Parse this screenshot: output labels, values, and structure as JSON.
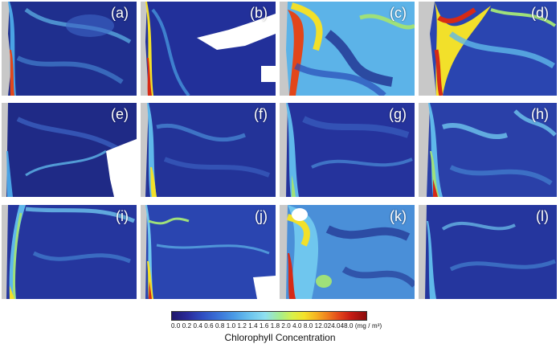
{
  "panels": [
    {
      "label": "(a)",
      "bloom": "low"
    },
    {
      "label": "(b)",
      "bloom": "coastal"
    },
    {
      "label": "(c)",
      "bloom": "high"
    },
    {
      "label": "(d)",
      "bloom": "high"
    },
    {
      "label": "(e)",
      "bloom": "low"
    },
    {
      "label": "(f)",
      "bloom": "low"
    },
    {
      "label": "(g)",
      "bloom": "low"
    },
    {
      "label": "(h)",
      "bloom": "medium"
    },
    {
      "label": "(i)",
      "bloom": "medium"
    },
    {
      "label": "(j)",
      "bloom": "low"
    },
    {
      "label": "(k)",
      "bloom": "high"
    },
    {
      "label": "(l)",
      "bloom": "low"
    }
  ],
  "colorbar": {
    "tick_labels": "0.0 0.2 0.4 0.6 0.8 1.0 1.2 1.4 1.6 1.8 2.0 4.0 8.0 12.024.048.0 (mg / m³)",
    "title": "Chlorophyll Concentration"
  },
  "colors": {
    "ocean_low": "#1c2a86",
    "ocean_mid": "#3a6fd0",
    "filament": "#6fc6ee",
    "bloom_green": "#9fe07a",
    "bloom_yellow": "#f2e02a",
    "bloom_red": "#d62a16",
    "land": "#c8c8c8",
    "cloud": "#ffffff"
  }
}
